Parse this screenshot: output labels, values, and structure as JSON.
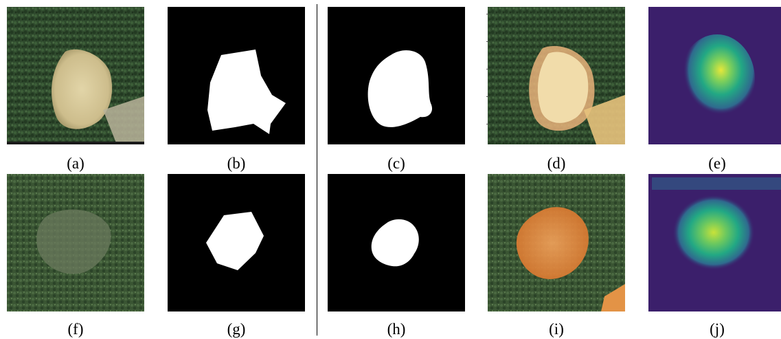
{
  "figure": {
    "rows": [
      {
        "panels": [
          {
            "id": "a",
            "caption": "(a)",
            "kind": "satellite-photo",
            "description": "forest clearing with bare sandy area"
          },
          {
            "id": "b",
            "caption": "(b)",
            "kind": "binary-mask"
          },
          {
            "id": "c",
            "caption": "(c)",
            "kind": "binary-mask"
          },
          {
            "id": "d",
            "caption": "(d)",
            "kind": "overlay-photo"
          },
          {
            "id": "e",
            "caption": "(e)",
            "kind": "heatmap"
          }
        ]
      },
      {
        "panels": [
          {
            "id": "f",
            "caption": "(f)",
            "kind": "satellite-photo"
          },
          {
            "id": "g",
            "caption": "(g)",
            "kind": "binary-mask"
          },
          {
            "id": "h",
            "caption": "(h)",
            "kind": "binary-mask"
          },
          {
            "id": "i",
            "caption": "(i)",
            "kind": "overlay-photo"
          },
          {
            "id": "j",
            "caption": "(j)",
            "kind": "heatmap"
          }
        ]
      }
    ],
    "colors": {
      "forest": "#2e4a2c",
      "sand": "#d6c79a",
      "mask_bg": "#000000",
      "mask_fg": "#ffffff",
      "overlay_orange": "#e8883a",
      "heat_bg": "#3b1f6b",
      "heat_hi": "#e6e73a"
    }
  }
}
